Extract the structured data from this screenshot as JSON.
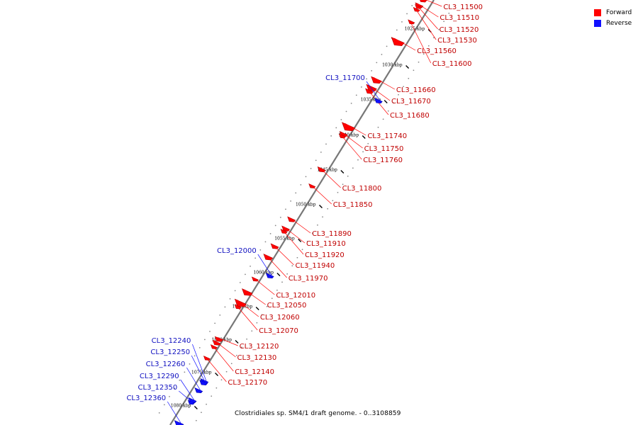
{
  "legend": {
    "forward_label": "Forward",
    "reverse_label": "Reverse",
    "forward_color": "#ff0000",
    "reverse_color": "#1010ff"
  },
  "caption": "Clostridiales sp. SM4/1 draft genome. - 0..3108859",
  "ticks": [
    "1025 kbp",
    "1030 kbp",
    "1035 kbp",
    "1040 kbp",
    "1045 kbp",
    "1050 kbp",
    "1055 kbp",
    "1060 kbp",
    "1065 kbp",
    "1070 kbp",
    "1075 kbp",
    "1080 kbp"
  ],
  "forward_genes": [
    "CL3_11500",
    "CL3_11510",
    "CL3_11520",
    "CL3_11530",
    "CL3_11560",
    "CL3_11600",
    "CL3_11660",
    "CL3_11670",
    "CL3_11680",
    "CL3_11740",
    "CL3_11750",
    "CL3_11760",
    "CL3_11800",
    "CL3_11850",
    "CL3_11890",
    "CL3_11910",
    "CL3_11920",
    "CL3_11940",
    "CL3_11970",
    "CL3_12010",
    "CL3_12050",
    "CL3_12060",
    "CL3_12070",
    "CL3_12120",
    "CL3_12130",
    "CL3_12140",
    "CL3_12170"
  ],
  "reverse_genes": [
    "CL3_11700",
    "CL3_12000",
    "CL3_12240",
    "CL3_12250",
    "CL3_12260",
    "CL3_12290",
    "CL3_12350",
    "CL3_12360"
  ]
}
